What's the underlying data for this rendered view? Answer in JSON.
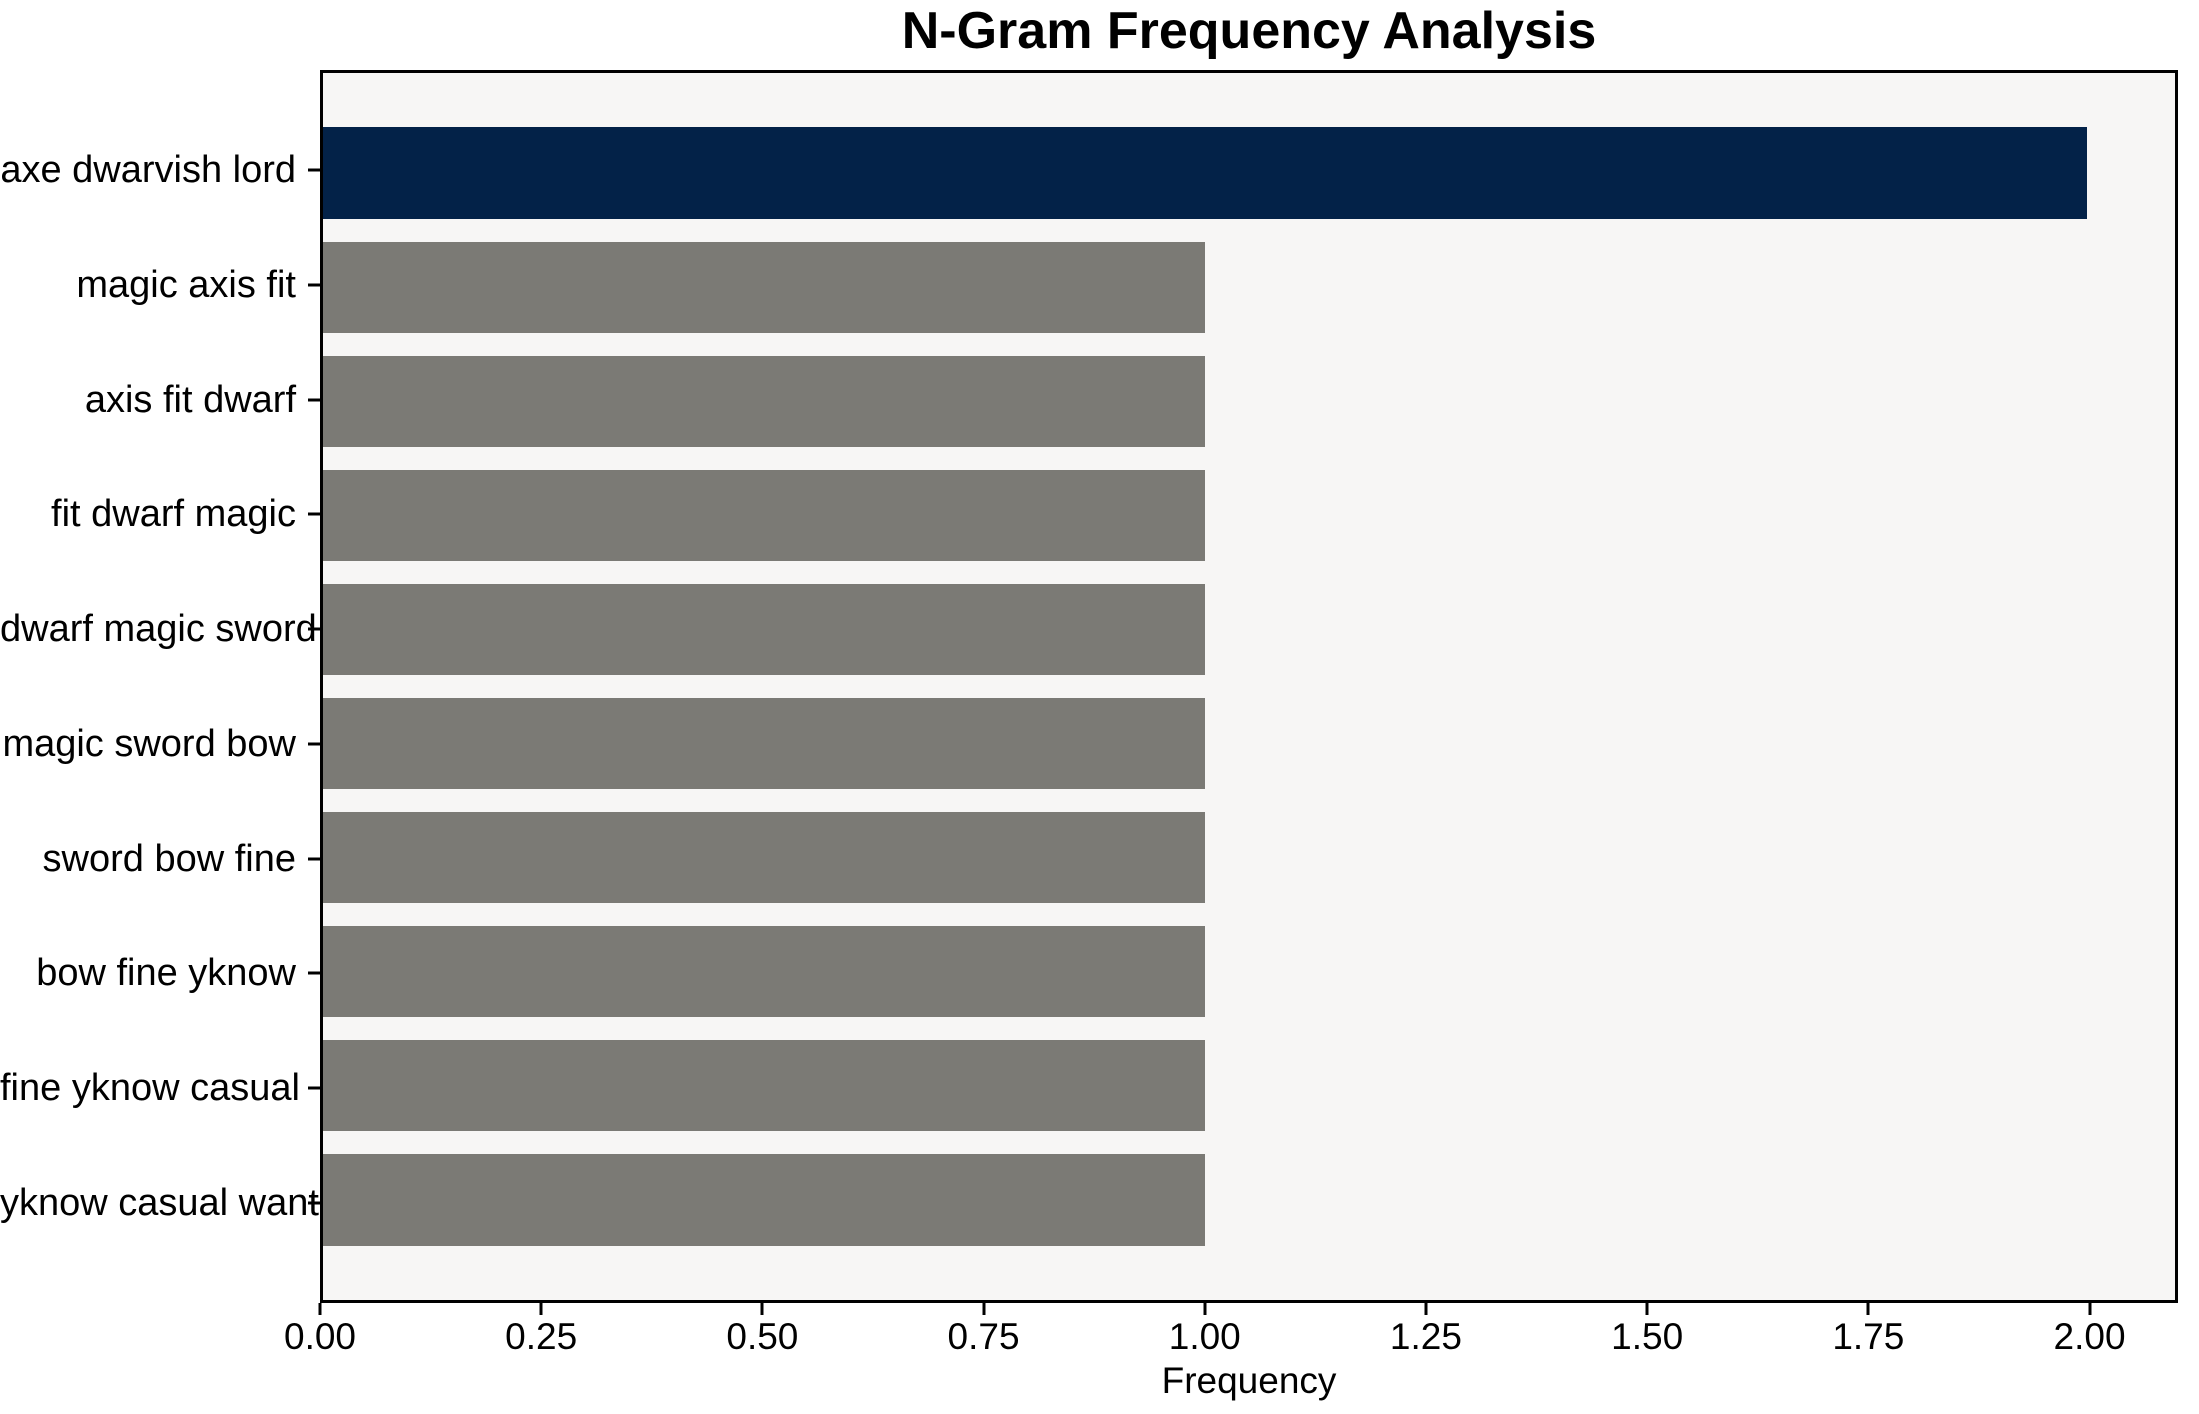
{
  "chart_data": {
    "type": "bar",
    "orientation": "horizontal",
    "title": "N-Gram Frequency Analysis",
    "xlabel": "Frequency",
    "ylabel": "",
    "categories": [
      "axe dwarvish lord",
      "magic axis fit",
      "axis fit dwarf",
      "fit dwarf magic",
      "dwarf magic sword",
      "magic sword bow",
      "sword bow fine",
      "bow fine yknow",
      "fine yknow casual",
      "yknow casual want"
    ],
    "values": [
      2,
      1,
      1,
      1,
      1,
      1,
      1,
      1,
      1,
      1
    ],
    "xlim": [
      0,
      2.1
    ],
    "xticks": [
      0,
      0.25,
      0.5,
      0.75,
      1.0,
      1.25,
      1.5,
      1.75,
      2.0
    ],
    "xtick_labels": [
      "0.00",
      "0.25",
      "0.50",
      "0.75",
      "1.00",
      "1.25",
      "1.50",
      "1.75",
      "2.00"
    ],
    "grid": false,
    "legend_position": "none",
    "bar_height_fraction": 0.8,
    "colors": {
      "highlight_bar": "#032248",
      "default_bar": "#7b7a75",
      "plot_background": "#f7f6f5",
      "figure_background": "#ffffff",
      "axis_color": "#000000",
      "text_color": "#000000"
    },
    "bar_colors": [
      "#032248",
      "#7b7a75",
      "#7b7a75",
      "#7b7a75",
      "#7b7a75",
      "#7b7a75",
      "#7b7a75",
      "#7b7a75",
      "#7b7a75",
      "#7b7a75"
    ]
  }
}
